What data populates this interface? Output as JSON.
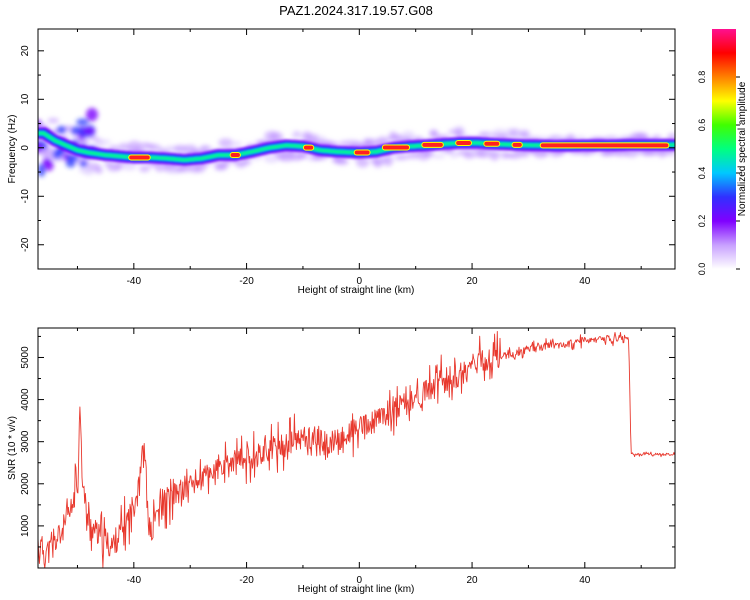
{
  "chart_data": [
    {
      "type": "heatmap",
      "title": "PAZ1.2024.317.19.57.G08",
      "xlabel": "Height of straight line (km)",
      "ylabel": "Frequency (Hz)",
      "xlim": [
        -57,
        56
      ],
      "ylim": [
        -25,
        24.5
      ],
      "x_ticks": [
        -40,
        -20,
        0,
        20,
        40
      ],
      "y_ticks": [
        -20,
        -10,
        0,
        10,
        20
      ],
      "grid": false,
      "colorbar": {
        "label": "Normalized spectral amplitude",
        "range": [
          0,
          1
        ],
        "ticks": [
          "0.0",
          "0.2",
          "0.4",
          "0.6",
          "0.8"
        ],
        "colors": [
          "#ffffff",
          "#c8a0ff",
          "#8000ff",
          "#3030ff",
          "#00c8ff",
          "#00ff80",
          "#40ff00",
          "#ffff00",
          "#ff8000",
          "#ff0000",
          "#ff1090"
        ]
      },
      "ridge": {
        "x": [
          -56,
          -54,
          -52,
          -50,
          -48,
          -45,
          -42,
          -40,
          -37,
          -34,
          -31,
          -28,
          -25,
          -22,
          -19,
          -16,
          -13,
          -10,
          -7,
          -4,
          0,
          3,
          6,
          9,
          12,
          15,
          18,
          21,
          24,
          28,
          32,
          36,
          40,
          44,
          48,
          52,
          56
        ],
        "y": [
          3,
          1.5,
          0.5,
          -0.5,
          -1,
          -1.5,
          -1.8,
          -2,
          -2,
          -2.2,
          -2.5,
          -2.2,
          -1.5,
          -1.5,
          -0.8,
          0,
          0.5,
          0.3,
          -0.5,
          -0.8,
          -1,
          -0.8,
          0,
          0.3,
          0.5,
          0.8,
          1,
          1,
          0.8,
          0.6,
          0.5,
          0.4,
          0.5,
          0.5,
          0.6,
          0.6,
          0.6
        ]
      }
    },
    {
      "type": "line",
      "xlabel": "Height of straight line (km)",
      "ylabel": "SNR (10 * v/v)",
      "xlim": [
        -57,
        56
      ],
      "ylim": [
        0,
        5700
      ],
      "x_ticks": [
        -40,
        -20,
        0,
        20,
        40
      ],
      "y_ticks": [
        1000,
        2000,
        3000,
        4000,
        5000
      ],
      "grid": false,
      "color": "#e8392e",
      "series": [
        {
          "x": [
            -57,
            -55,
            -53,
            -51,
            -50,
            -49.5,
            -49,
            -48,
            -46,
            -44,
            -42,
            -40,
            -38.5,
            -38,
            -37.5,
            -37,
            -36,
            -34,
            -32,
            -30,
            -28,
            -26,
            -24,
            -22,
            -20,
            -18,
            -16,
            -14,
            -12,
            -10,
            -8,
            -6,
            -4,
            -2,
            0,
            2,
            4,
            6,
            8,
            10,
            12,
            14,
            16,
            18,
            20,
            22,
            24,
            26,
            28,
            30,
            32,
            34,
            36,
            38,
            40,
            42,
            44,
            46,
            47.8,
            48.2,
            50,
            52,
            54,
            56
          ],
          "y": [
            500,
            400,
            800,
            1400,
            2100,
            3900,
            1800,
            1100,
            700,
            500,
            900,
            1500,
            2650,
            2700,
            1200,
            800,
            1300,
            1600,
            1800,
            2000,
            2100,
            2300,
            2350,
            2500,
            2600,
            2700,
            2800,
            2900,
            3000,
            3100,
            3100,
            2900,
            3000,
            3200,
            3300,
            3400,
            3600,
            3800,
            3850,
            4000,
            4200,
            4400,
            4500,
            4600,
            4800,
            4900,
            5000,
            5050,
            5100,
            5200,
            5250,
            5300,
            5300,
            5350,
            5400,
            5400,
            5450,
            5450,
            5400,
            2700,
            2700,
            2700,
            2700,
            2700
          ]
        }
      ]
    }
  ]
}
